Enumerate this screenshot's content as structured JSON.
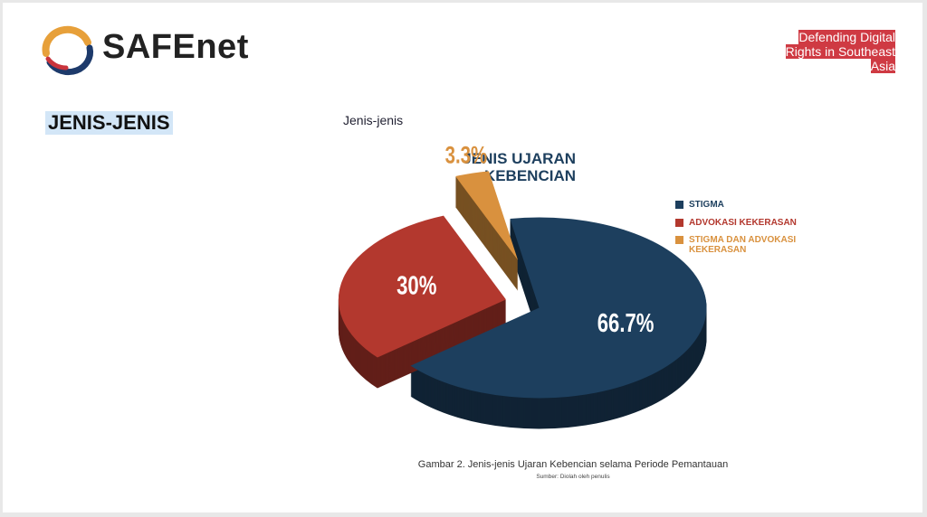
{
  "logo_text": "SAFEnet",
  "tagline": "Defending Digital Rights in Southeast Asia",
  "heading": "JENIS-JENIS",
  "subheading": "Jenis-jenis",
  "chart_data": {
    "type": "pie",
    "title": "JENIS UJARAN KEBENCIAN",
    "categories": [
      "STIGMA",
      "ADVOKASI KEKERASAN",
      "STIGMA DAN ADVOKASI KEKERASAN"
    ],
    "values": [
      66.7,
      30,
      3.3
    ],
    "value_labels": [
      "66.7%",
      "30%",
      "3.3%"
    ],
    "colors": [
      "#1d3f5e",
      "#b3382e",
      "#d9913e"
    ],
    "legend": "right",
    "caption": "Gambar 2. Jenis-jenis Ujaran Kebencian selama Periode Pemantauan",
    "source": "Sumber: Diolah oleh penulis"
  }
}
